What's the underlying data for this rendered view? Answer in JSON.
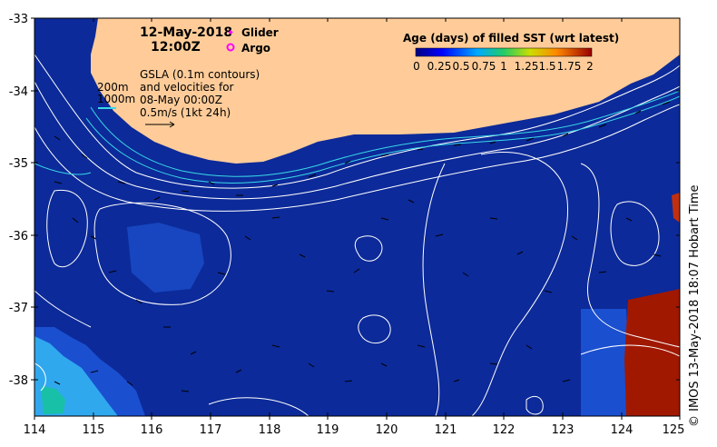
{
  "map": {
    "date": "12-May-2018",
    "time": "12:00Z",
    "legend_glider": "Glider",
    "legend_argo": "Argo",
    "gsla_note_line1": "GSLA (0.1m contours)",
    "gsla_note_line2": "and velocities for",
    "gsla_note_line3": "08-May 00:00Z",
    "gsla_note_line4": "0.5m/s (1kt 24h)",
    "isobath_200": "200m",
    "isobath_1000": "1000m",
    "colorbar_title": "Age (days) of filled SST (wrt latest)",
    "colorbar_ticks": [
      "0",
      "0.25",
      "0.5",
      "0.75",
      "1",
      "1.25",
      "1.5",
      "1.75",
      "2"
    ],
    "x_ticks": [
      "114",
      "115",
      "116",
      "117",
      "118",
      "119",
      "120",
      "121",
      "122",
      "123",
      "124",
      "125"
    ],
    "y_ticks": [
      "-33",
      "-34",
      "-35",
      "-36",
      "-37",
      "-38"
    ],
    "credit": "© IMOS 13-May-2018 18:07 Hobart Time"
  },
  "colors": {
    "ocean": "#0c2a99",
    "land": "#ffcc99",
    "contour": "#ffffff",
    "isobath": "#38d8e8",
    "glider": "#ff00ff",
    "argo": "#ff00ff",
    "stale_high": "#a01800",
    "stale_low": "#44bbee"
  }
}
